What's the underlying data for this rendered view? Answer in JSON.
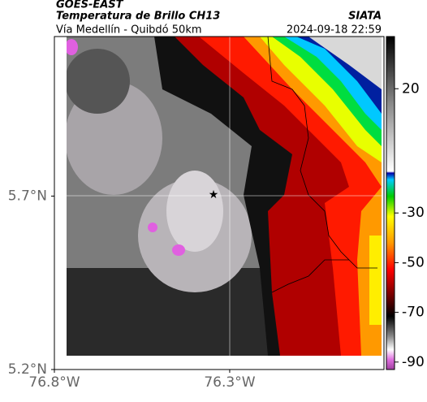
{
  "header": {
    "source": "GOES-EAST",
    "title": "Temperatura de Brillo CH13",
    "brand": "SIATA",
    "subtitle": "Vía Medellín - Quibdó 50km",
    "timestamp": "2024-09-18 22:59"
  },
  "map": {
    "xlim": [
      -76.8,
      -75.86
    ],
    "ylim": [
      5.2,
      6.16
    ],
    "xticks": [
      {
        "value": -76.8,
        "label": "76.8°W"
      },
      {
        "value": -76.3,
        "label": "76.3°W"
      }
    ],
    "yticks": [
      {
        "value": 5.7,
        "label": "5.7°N"
      },
      {
        "value": 5.2,
        "label": "5.2°N"
      }
    ]
  },
  "colorbar": {
    "lim": [
      -93,
      41
    ],
    "ticks": [
      20,
      -30,
      -50,
      -70,
      -90
    ]
  }
}
